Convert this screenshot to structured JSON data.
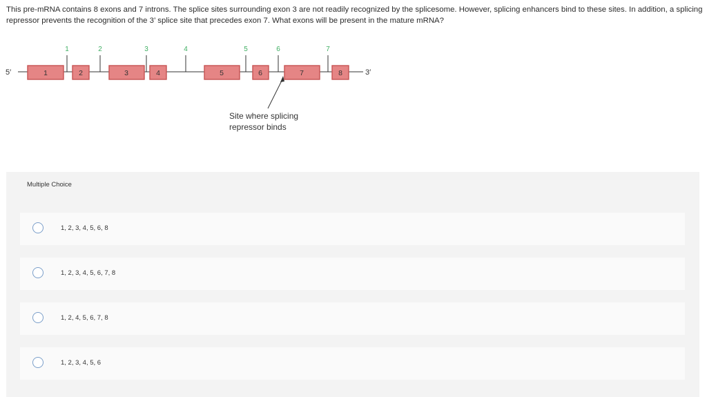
{
  "question": {
    "text": "This pre-mRNA contains 8 exons and 7 introns. The splice sites surrounding exon 3 are not readily recognized by the splicesome. However, splicing enhancers bind to these sites. In addition, a splicing repressor prevents the recognition of the 3’ splice site that precedes exon 7. What exons will be present in the mature mRNA?"
  },
  "diagram": {
    "five_prime": "5′",
    "three_prime": "3′",
    "exons": [
      "1",
      "2",
      "3",
      "4",
      "5",
      "6",
      "7",
      "8"
    ],
    "introns": [
      "1",
      "2",
      "3",
      "4",
      "5",
      "6",
      "7"
    ],
    "annotation": "Site where splicing repressor binds",
    "colors": {
      "exon_fill": "#e58585",
      "exon_stroke": "#c65353",
      "intron_number": "#3fae62",
      "line": "#333333"
    }
  },
  "multiple_choice": {
    "title": "Multiple Choice",
    "options": [
      "1, 2, 3, 4, 5, 6, 8",
      "1, 2, 3, 4, 5, 6, 7, 8",
      "1, 2, 4, 5, 6, 7, 8",
      "1, 2, 3, 4, 5, 6"
    ]
  }
}
